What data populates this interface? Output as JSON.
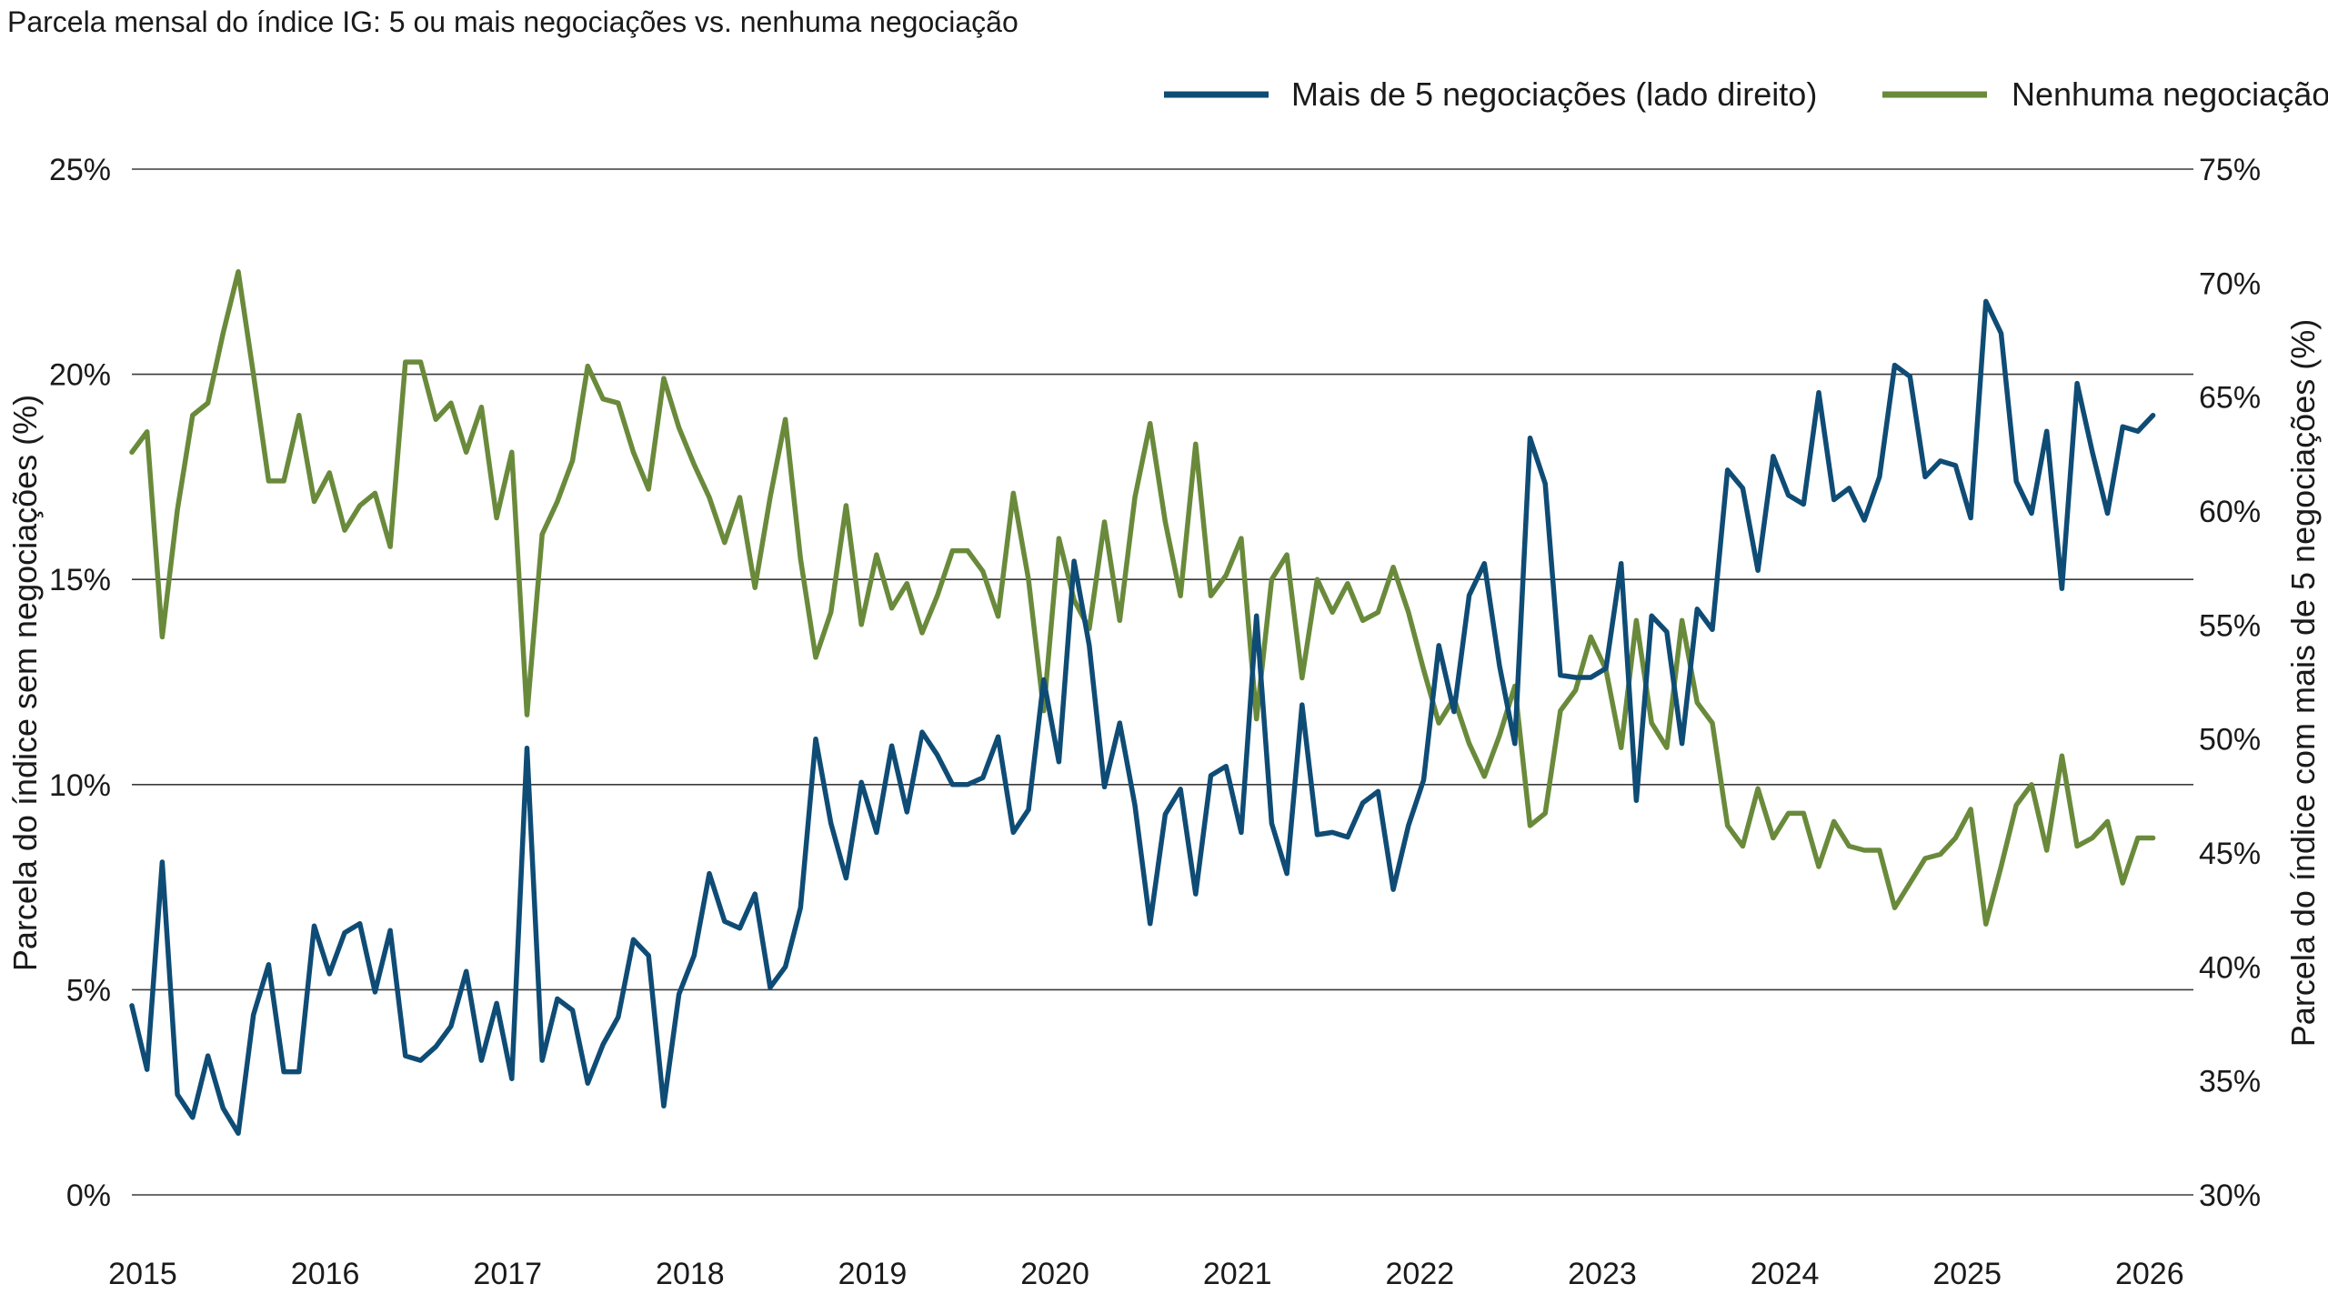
{
  "chart_data": {
    "type": "line",
    "title": "Parcela mensal do índice IG: 5 ou mais negociações vs. nenhuma negociação",
    "x_tick_labels": [
      "2015",
      "2016",
      "2017",
      "2018",
      "2019",
      "2020",
      "2021",
      "2022",
      "2023",
      "2024",
      "2025",
      "2026"
    ],
    "x_range": [
      2015.0,
      2026.3
    ],
    "left_axis": {
      "label": "Parcela do índice sem negociações (%)",
      "range": [
        0,
        25
      ],
      "ticks": [
        0,
        5,
        10,
        15,
        20,
        25
      ],
      "tick_labels": [
        "0%",
        "5%",
        "10%",
        "15%",
        "20%",
        "25%"
      ]
    },
    "right_axis": {
      "label": "Parcela do índice com mais de 5 negociações (%)",
      "range": [
        30,
        75
      ],
      "ticks": [
        30,
        35,
        40,
        45,
        50,
        55,
        60,
        65,
        70,
        75
      ],
      "tick_labels": [
        "30%",
        "35%",
        "40%",
        "45%",
        "50%",
        "55%",
        "60%",
        "65%",
        "70%",
        "75%"
      ]
    },
    "grid": "horizontal",
    "legend_position": "top-right",
    "series": [
      {
        "name": "Mais de 5 negociações (lado direito)",
        "axis": "right",
        "color": "#0f4c75",
        "x_start": 2015.0,
        "x_step": 0.0833,
        "values": [
          38.3,
          35.5,
          44.6,
          34.4,
          33.4,
          36.1,
          33.8,
          32.7,
          37.9,
          40.1,
          35.4,
          35.4,
          41.8,
          39.7,
          41.5,
          41.9,
          38.9,
          41.6,
          36.1,
          35.9,
          36.5,
          37.4,
          39.8,
          35.9,
          38.4,
          35.1,
          49.6,
          35.9,
          38.6,
          38.1,
          34.9,
          36.6,
          37.8,
          41.2,
          40.5,
          33.9,
          38.8,
          40.5,
          44.1,
          42.0,
          41.7,
          43.2,
          39.1,
          40.0,
          42.6,
          50.0,
          46.3,
          43.9,
          48.1,
          45.9,
          49.7,
          46.8,
          50.3,
          49.3,
          48.0,
          48.0,
          48.3,
          50.1,
          45.9,
          46.9,
          52.6,
          49.0,
          57.8,
          54.1,
          47.9,
          50.7,
          47.1,
          41.9,
          46.7,
          47.8,
          43.2,
          48.4,
          48.8,
          45.9,
          55.4,
          46.3,
          44.1,
          51.5,
          45.8,
          45.9,
          45.7,
          47.2,
          47.7,
          43.4,
          46.2,
          48.2,
          54.1,
          51.2,
          56.3,
          57.7,
          53.2,
          49.8,
          63.2,
          61.2,
          52.8,
          52.7,
          52.7,
          53.1,
          57.7,
          47.3,
          55.4,
          54.7,
          49.8,
          55.7,
          54.8,
          61.8,
          61.0,
          57.4,
          62.4,
          60.7,
          60.3,
          65.2,
          60.5,
          61.0,
          59.6,
          61.5,
          66.4,
          65.9,
          61.5,
          62.2,
          62.0,
          59.7,
          69.2,
          67.8,
          61.3,
          59.9,
          63.5,
          56.6,
          65.6,
          62.6,
          59.9,
          63.7,
          63.5,
          64.2
        ]
      },
      {
        "name": "Nenhuma negociação",
        "axis": "left",
        "color": "#6a8a3b",
        "x_start": 2015.0,
        "x_step": 0.0833,
        "values": [
          18.1,
          18.6,
          13.6,
          16.7,
          19.0,
          19.3,
          21.0,
          22.5,
          20.0,
          17.4,
          17.4,
          19.0,
          16.9,
          17.6,
          16.2,
          16.8,
          17.1,
          15.8,
          20.3,
          20.3,
          18.9,
          19.3,
          18.1,
          19.2,
          16.5,
          18.1,
          11.7,
          16.1,
          16.9,
          17.9,
          20.2,
          19.4,
          19.3,
          18.1,
          17.2,
          19.9,
          18.7,
          17.8,
          17.0,
          15.9,
          17.0,
          14.8,
          17.0,
          18.9,
          15.5,
          13.1,
          14.2,
          16.8,
          13.9,
          15.6,
          14.3,
          14.9,
          13.7,
          14.6,
          15.7,
          15.7,
          15.2,
          14.1,
          17.1,
          15.0,
          11.8,
          16.0,
          14.5,
          13.8,
          16.4,
          14.0,
          17.0,
          18.8,
          16.4,
          14.6,
          18.3,
          14.6,
          15.1,
          16.0,
          11.6,
          15.0,
          15.6,
          12.6,
          15.0,
          14.2,
          14.9,
          14.0,
          14.2,
          15.3,
          14.2,
          12.8,
          11.5,
          12.1,
          11.0,
          10.2,
          11.2,
          12.4,
          9.0,
          9.3,
          11.8,
          12.3,
          13.6,
          12.8,
          10.9,
          14.0,
          11.5,
          10.9,
          14.0,
          12.0,
          11.5,
          9.0,
          8.5,
          9.9,
          8.7,
          9.3,
          9.3,
          8.0,
          9.1,
          8.5,
          8.4,
          8.4,
          7.0,
          7.6,
          8.2,
          8.3,
          8.7,
          9.4,
          6.6,
          8.0,
          9.5,
          10.0,
          8.4,
          10.7,
          8.5,
          8.7,
          9.1,
          7.6,
          8.7,
          8.7
        ]
      }
    ]
  }
}
